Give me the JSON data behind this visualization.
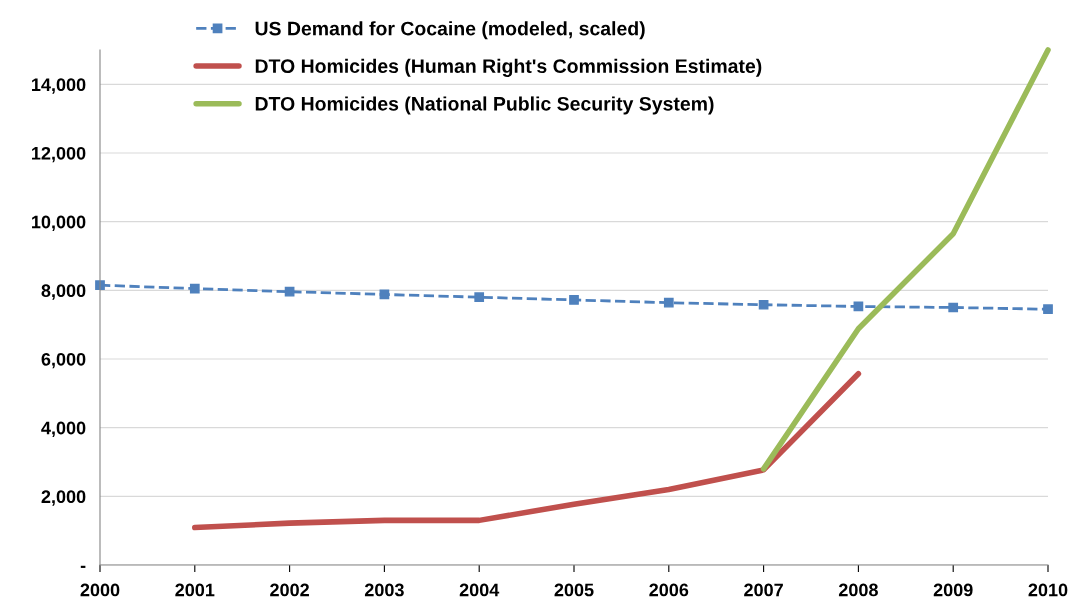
{
  "chart_data": {
    "type": "line",
    "x": [
      2000,
      2001,
      2002,
      2003,
      2004,
      2005,
      2006,
      2007,
      2008,
      2009,
      2010
    ],
    "xlim": [
      2000,
      2010
    ],
    "xticks": [
      2000,
      2001,
      2002,
      2003,
      2004,
      2005,
      2006,
      2007,
      2008,
      2009,
      2010
    ],
    "ylim": [
      0,
      15000
    ],
    "yticks": [
      {
        "value": 0,
        "label": "-"
      },
      {
        "value": 2000,
        "label": "2,000"
      },
      {
        "value": 4000,
        "label": "4,000"
      },
      {
        "value": 6000,
        "label": "6,000"
      },
      {
        "value": 8000,
        "label": "8,000"
      },
      {
        "value": 10000,
        "label": "10,000"
      },
      {
        "value": 12000,
        "label": "12,000"
      },
      {
        "value": 14000,
        "label": "14,000"
      }
    ],
    "grid": "y",
    "legend": "top",
    "series": [
      {
        "name": "US Demand for Cocaine (modeled, scaled)",
        "color": "#4f81bd",
        "marker": "square",
        "line_style": "dashed",
        "values": [
          8150,
          8050,
          7960,
          7880,
          7800,
          7720,
          7640,
          7580,
          7530,
          7500,
          7450
        ]
      },
      {
        "name": "DTO Homicides (Human Right's Commission Estimate)",
        "color": "#c0504d",
        "marker": "none",
        "line_style": "solid",
        "values": [
          null,
          1090,
          1220,
          1300,
          1300,
          1770,
          2200,
          2770,
          5570,
          null,
          null
        ]
      },
      {
        "name": "DTO Homicides (National Public Security System)",
        "color": "#9bbb59",
        "marker": "none",
        "line_style": "solid",
        "values": [
          null,
          null,
          null,
          null,
          null,
          null,
          null,
          2800,
          6880,
          9650,
          15000
        ]
      }
    ]
  }
}
